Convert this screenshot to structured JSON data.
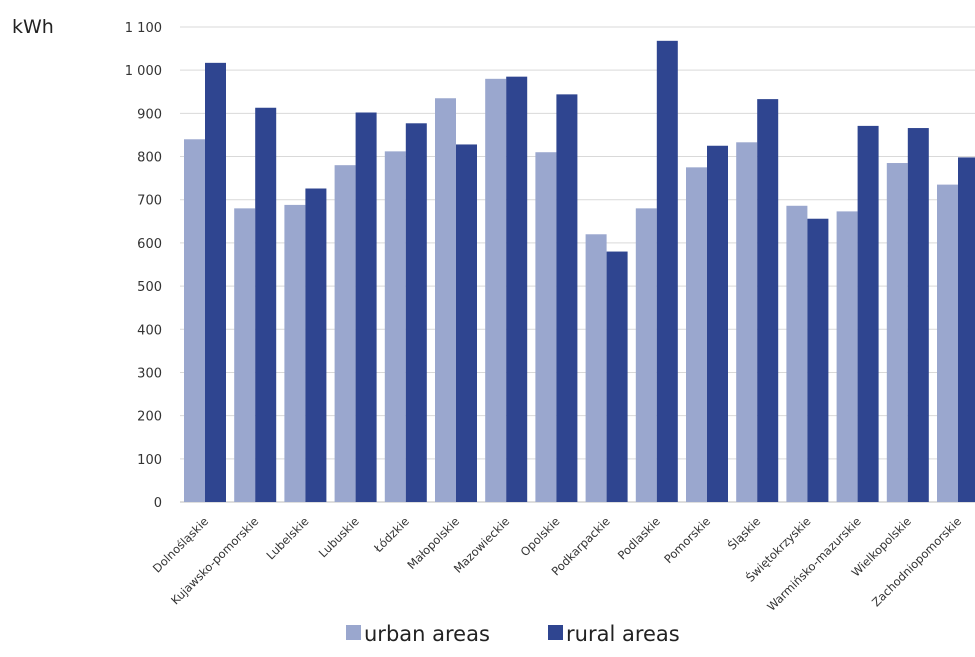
{
  "chart_data": {
    "type": "bar",
    "ylabel": "kWh",
    "ylim": [
      0,
      1100
    ],
    "yticks": [
      0,
      100,
      200,
      300,
      400,
      500,
      600,
      700,
      800,
      900,
      1000,
      1100
    ],
    "ytick_labels": [
      "0",
      "100",
      "200",
      "300",
      "400",
      "500",
      "600",
      "700",
      "800",
      "900",
      "1 000",
      "1 100"
    ],
    "grid": true,
    "legend_position": "bottom",
    "categories": [
      "Dolnośląskie",
      "Kujawsko-pomorskie",
      "Lubelskie",
      "Lubuskie",
      "Łódzkie",
      "Małopolskie",
      "Mazowieckie",
      "Opolskie",
      "Podkarpackie",
      "Podlaskie",
      "Pomorskie",
      "Śląskie",
      "Świętokrzyskie",
      "Warmińsko-mazurskie",
      "Wielkopolskie",
      "Zachodniopomorskie"
    ],
    "series": [
      {
        "name": "urban areas",
        "color": "#9aa7ce",
        "values": [
          840,
          680,
          688,
          780,
          812,
          935,
          980,
          810,
          620,
          680,
          775,
          833,
          686,
          673,
          785,
          735
        ]
      },
      {
        "name": "rural areas",
        "color": "#2f4590",
        "values": [
          1017,
          913,
          726,
          902,
          877,
          828,
          985,
          944,
          580,
          1068,
          825,
          933,
          656,
          871,
          866,
          798
        ]
      }
    ]
  }
}
